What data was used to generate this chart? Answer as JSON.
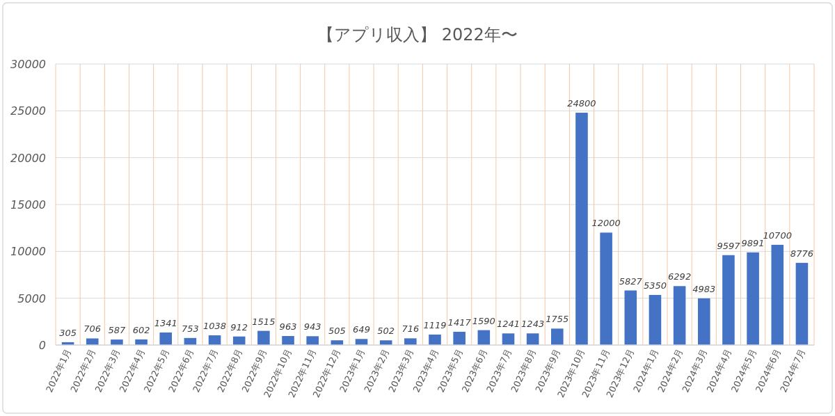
{
  "chart_data": {
    "type": "bar",
    "title": "【アプリ収入】 2022年〜",
    "categories": [
      "2022年1月",
      "2022年2月",
      "2022年3月",
      "2022年4月",
      "2022年5月",
      "2022年6月",
      "2022年7月",
      "2022年8月",
      "2022年9月",
      "2022年10月",
      "2022年11月",
      "2022年12月",
      "2023年1月",
      "2023年2月",
      "2023年3月",
      "2023年4月",
      "2023年5月",
      "2023年6月",
      "2023年7月",
      "2023年8月",
      "2023年9月",
      "2023年10月",
      "2023年11月",
      "2023年12月",
      "2024年1月",
      "2024年2月",
      "2024年3月",
      "2024年4月",
      "2024年5月",
      "2024年6月",
      "2024年7月"
    ],
    "values": [
      305,
      706,
      587,
      602,
      1341,
      753,
      1038,
      912,
      1515,
      963,
      943,
      505,
      649,
      502,
      716,
      1119,
      1417,
      1590,
      1241,
      1243,
      1755,
      24800,
      12000,
      5827,
      5350,
      6292,
      4983,
      9597,
      9891,
      10700,
      8776
    ],
    "color": "#4472c4",
    "ylim": [
      0,
      30000
    ],
    "yticks": [
      0,
      5000,
      10000,
      15000,
      20000,
      25000,
      30000
    ],
    "grid": true,
    "data_labels": true
  }
}
